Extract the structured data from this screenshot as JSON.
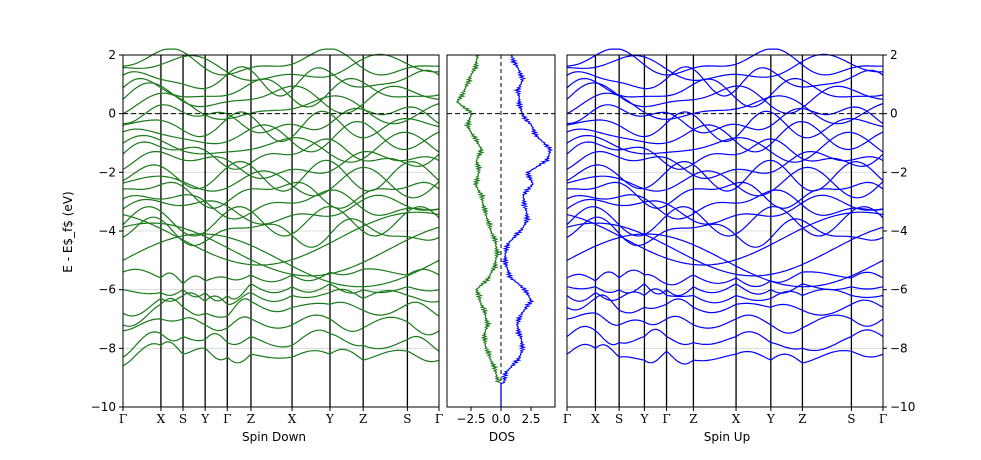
{
  "chart_data": [
    {
      "type": "line",
      "title": "",
      "xlabel": "Spin Down",
      "ylabel": "E - E$_f$ (eV)",
      "ylim": [
        -10,
        2
      ],
      "yticks": [
        -10,
        -8,
        -6,
        -4,
        -2,
        0,
        2
      ],
      "kpoints": [
        "Γ",
        "X",
        "S",
        "Y",
        "Γ",
        "Z",
        "X",
        "Y",
        "Z",
        "S",
        "Γ"
      ],
      "kpoint_positions": [
        0,
        0.12,
        0.19,
        0.26,
        0.33,
        0.405,
        0.535,
        0.655,
        0.76,
        0.9,
        1.0
      ],
      "color": "#1a7a1a",
      "grid": "horizontal",
      "fermi_line": 0,
      "band_energies_at_kpoints": [
        [
          -8.6,
          -8.3,
          -7.4,
          -7.2,
          -6.8,
          -6.0,
          -5.4
        ],
        [
          -7.9,
          -7.5,
          -7.0,
          -6.5,
          -6.3,
          -6.1,
          -5.6
        ],
        [
          -8.2,
          -7.6,
          -7.0,
          -6.6,
          -6.2,
          -6.0,
          -5.8
        ],
        [
          -8.0,
          -7.7,
          -7.2,
          -6.8,
          -6.4,
          -6.1,
          -5.7
        ],
        [
          -8.3,
          -7.8,
          -7.3,
          -6.9,
          -6.5,
          -6.2,
          -5.6
        ],
        [
          -8.2,
          -7.6,
          -7.0,
          -6.4,
          -6.1,
          -5.8,
          -5.5
        ],
        [
          -8.3,
          -7.9,
          -7.2,
          -6.6,
          -6.2,
          -5.9,
          -5.5
        ],
        [
          -8.2,
          -7.5,
          -7.0,
          -6.5,
          -6.1,
          -5.8,
          -5.4
        ],
        [
          -8.4,
          -7.9,
          -7.3,
          -6.7,
          -6.3,
          -6.0,
          -5.3
        ],
        [
          -8.1,
          -7.7,
          -7.1,
          -6.5,
          -6.2,
          -5.9,
          -5.5
        ],
        [
          -8.4,
          -8.1,
          -7.4,
          -6.9,
          -6.4,
          -6.0,
          -5.5
        ]
      ]
    },
    {
      "type": "line",
      "title": "",
      "xlabel": "DOS",
      "ylabel": "",
      "ylim": [
        -10,
        2
      ],
      "xlim": [
        -4.5,
        4.5
      ],
      "xticks": [
        -2.5,
        0.0,
        2.5
      ],
      "series": [
        {
          "color": "#1a7a1a",
          "e": [
            -10,
            -9.2,
            -8.8,
            -8.4,
            -8.0,
            -7.6,
            -7.2,
            -6.8,
            -6.4,
            -6.0,
            -5.6,
            -5.2,
            -4.8,
            -4.4,
            -4.0,
            -3.6,
            -3.2,
            -2.8,
            -2.4,
            -2.0,
            -1.6,
            -1.2,
            -0.8,
            -0.4,
            0.0,
            0.4,
            0.8,
            1.2,
            1.6,
            2.0
          ],
          "dos": [
            0,
            0,
            -0.2,
            -0.6,
            -1.0,
            -1.2,
            -0.9,
            -1.1,
            -1.5,
            -1.8,
            -0.8,
            -0.3,
            -0.1,
            -0.2,
            -0.6,
            -0.9,
            -1.2,
            -1.4,
            -1.9,
            -1.6,
            -1.8,
            -1.4,
            -2.0,
            -2.6,
            -2.2,
            -3.4,
            -2.8,
            -2.4,
            -1.9,
            -1.7
          ]
        },
        {
          "color": "#0000ff",
          "e": [
            -10,
            -9.2,
            -8.8,
            -8.4,
            -8.0,
            -7.6,
            -7.2,
            -6.8,
            -6.4,
            -6.0,
            -5.6,
            -5.2,
            -4.8,
            -4.4,
            -4.0,
            -3.6,
            -3.2,
            -2.8,
            -2.4,
            -2.0,
            -1.6,
            -1.2,
            -0.8,
            -0.4,
            0.0,
            0.4,
            0.8,
            1.2,
            1.6,
            2.0
          ],
          "dos": [
            0,
            0,
            0.2,
            1.2,
            1.6,
            1.4,
            1.1,
            1.5,
            2.3,
            1.8,
            0.6,
            0.2,
            0.1,
            0.4,
            1.4,
            2.0,
            1.8,
            1.6,
            2.4,
            2.0,
            3.6,
            3.9,
            2.8,
            2.3,
            1.5,
            1.3,
            1.2,
            1.6,
            1.1,
            0.6
          ]
        }
      ],
      "fermi_line": 0
    },
    {
      "type": "line",
      "title": "",
      "xlabel": "Spin Up",
      "ylabel": "",
      "ylim": [
        -10,
        2
      ],
      "yticks": [
        -10,
        -8,
        -6,
        -4,
        -2,
        0,
        2
      ],
      "kpoints": [
        "Γ",
        "X",
        "S",
        "Y",
        "Γ",
        "Z",
        "X",
        "Y",
        "Z",
        "S",
        "Γ"
      ],
      "kpoint_positions": [
        0,
        0.09,
        0.165,
        0.245,
        0.315,
        0.4,
        0.535,
        0.645,
        0.745,
        0.9,
        1.0
      ],
      "color": "#0000ff",
      "grid": "horizontal",
      "fermi_line": 0,
      "band_energies_at_kpoints": [
        [
          -8.2,
          -7.6,
          -7.0,
          -6.6,
          -6.2,
          -5.9,
          -5.6
        ],
        [
          -8.0,
          -7.4,
          -6.8,
          -6.3,
          -6.1,
          -5.9,
          -5.7
        ],
        [
          -8.3,
          -7.8,
          -7.2,
          -6.7,
          -6.3,
          -6.0,
          -5.6
        ],
        [
          -8.4,
          -7.6,
          -7.1,
          -6.6,
          -6.2,
          -5.8,
          -5.5
        ],
        [
          -8.1,
          -7.6,
          -7.0,
          -6.5,
          -6.2,
          -6.0,
          -5.8
        ],
        [
          -8.4,
          -7.8,
          -7.2,
          -6.6,
          -6.2,
          -5.9,
          -5.5
        ],
        [
          -8.2,
          -7.6,
          -7.0,
          -6.5,
          -6.2,
          -5.8,
          -5.6
        ],
        [
          -8.4,
          -7.8,
          -7.2,
          -6.6,
          -6.3,
          -6.0,
          -5.7
        ],
        [
          -8.5,
          -8.0,
          -7.3,
          -6.7,
          -6.2,
          -5.8,
          -5.4
        ],
        [
          -8.1,
          -7.6,
          -7.0,
          -6.5,
          -6.2,
          -5.9,
          -5.6
        ],
        [
          -8.2,
          -7.6,
          -7.0,
          -6.6,
          -6.2,
          -5.9,
          -5.6
        ]
      ]
    }
  ]
}
